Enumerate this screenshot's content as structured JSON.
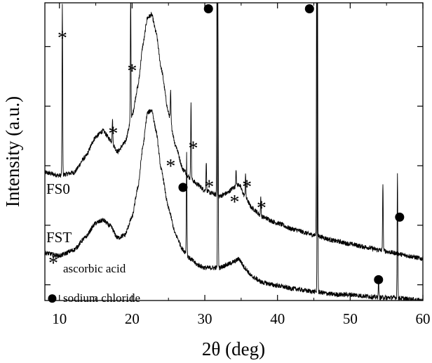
{
  "chart_data": {
    "type": "line",
    "title": "",
    "xlabel": "2θ (deg)",
    "ylabel": "Intensity (a.u.)",
    "xlim": [
      8,
      60
    ],
    "ylim": [
      0,
      100
    ],
    "x_ticks": [
      10,
      20,
      30,
      40,
      50,
      60
    ],
    "y_tick_count": 5,
    "series": [
      {
        "name": "FS0",
        "color": "#000000",
        "baseline": 42,
        "end_level": 14,
        "x": [
          8,
          10,
          12,
          13.5,
          15,
          16,
          17,
          18,
          19,
          20,
          20.8,
          21.5,
          22.1,
          22.7,
          23.3,
          24,
          25,
          26,
          27,
          28,
          29,
          30,
          31,
          32,
          33,
          34,
          34.7,
          35.5,
          36.5,
          38,
          40,
          42,
          45,
          48,
          50,
          52,
          54,
          56,
          58,
          60
        ],
        "y": [
          43,
          42,
          43,
          48,
          55,
          57,
          54,
          50,
          53,
          62,
          72,
          86,
          95,
          96,
          90,
          78,
          63,
          52,
          44,
          41,
          39,
          37,
          36,
          35,
          36,
          38,
          39,
          35,
          31,
          28,
          26,
          24,
          22,
          20,
          19,
          18,
          17,
          16,
          15,
          14
        ],
        "sharp_peaks": [
          {
            "x": 10.4,
            "height": 58
          },
          {
            "x": 17.3,
            "height": 8
          },
          {
            "x": 19.8,
            "height": 42
          },
          {
            "x": 25.3,
            "height": 10
          },
          {
            "x": 28.1,
            "height": 26
          },
          {
            "x": 30.2,
            "height": 10
          },
          {
            "x": 31.7,
            "height": 115
          },
          {
            "x": 34.3,
            "height": 6
          },
          {
            "x": 35.6,
            "height": 8
          },
          {
            "x": 37.7,
            "height": 6
          },
          {
            "x": 45.4,
            "height": 110
          },
          {
            "x": 54.5,
            "height": 23
          }
        ]
      },
      {
        "name": "FST",
        "color": "#000000",
        "baseline": 15,
        "end_level": 0,
        "x": [
          8,
          10,
          12,
          13.5,
          15,
          16,
          17,
          18,
          19,
          20,
          20.8,
          21.5,
          22.1,
          22.7,
          23.3,
          24,
          25,
          26,
          27,
          28,
          29,
          30,
          31,
          32,
          33,
          34,
          34.7,
          35.5,
          36.5,
          38,
          40,
          42,
          45,
          48,
          50,
          52,
          54,
          56,
          58,
          60
        ],
        "y": [
          16,
          15,
          17,
          21,
          26,
          27,
          25,
          21,
          22,
          28,
          38,
          52,
          63,
          64,
          57,
          44,
          31,
          22,
          17,
          14,
          12,
          11,
          11,
          11,
          12,
          13,
          14,
          11,
          8,
          6,
          5,
          4,
          3,
          2,
          2,
          1.5,
          1,
          1,
          0.5,
          0
        ],
        "sharp_peaks": [
          {
            "x": 27.5,
            "height": 34
          },
          {
            "x": 31.8,
            "height": 90
          },
          {
            "x": 45.5,
            "height": 110
          },
          {
            "x": 53.9,
            "height": 6
          },
          {
            "x": 56.5,
            "height": 42
          }
        ]
      }
    ],
    "markers": [
      {
        "symbol": "*",
        "kind": "ascorbic acid",
        "x": 10.4,
        "y": 89
      },
      {
        "symbol": "*",
        "kind": "ascorbic acid",
        "x": 17.4,
        "y": 57
      },
      {
        "symbol": "*",
        "kind": "ascorbic acid",
        "x": 20.0,
        "y": 78
      },
      {
        "symbol": "*",
        "kind": "ascorbic acid",
        "x": 25.3,
        "y": 46
      },
      {
        "symbol": "*",
        "kind": "ascorbic acid",
        "x": 28.4,
        "y": 52
      },
      {
        "symbol": "*",
        "kind": "ascorbic acid",
        "x": 30.6,
        "y": 39
      },
      {
        "symbol": "*",
        "kind": "ascorbic acid",
        "x": 34.1,
        "y": 34
      },
      {
        "symbol": "*",
        "kind": "ascorbic acid",
        "x": 35.8,
        "y": 39
      },
      {
        "symbol": "*",
        "kind": "ascorbic acid",
        "x": 37.8,
        "y": 32
      },
      {
        "symbol": "●",
        "kind": "sodium chloride",
        "x": 30.5,
        "y": 98
      },
      {
        "symbol": "●",
        "kind": "sodium chloride",
        "x": 44.4,
        "y": 98
      },
      {
        "symbol": "●",
        "kind": "sodium chloride",
        "x": 27.0,
        "y": 38
      },
      {
        "symbol": "●",
        "kind": "sodium chloride",
        "x": 56.8,
        "y": 28
      },
      {
        "symbol": "●",
        "kind": "sodium chloride",
        "x": 53.9,
        "y": 7
      }
    ],
    "legend": [
      {
        "symbol": "*",
        "label": "ascorbic acid"
      },
      {
        "symbol": "●",
        "label": "sodium chloride"
      }
    ],
    "legend_position": "bottom-left"
  }
}
